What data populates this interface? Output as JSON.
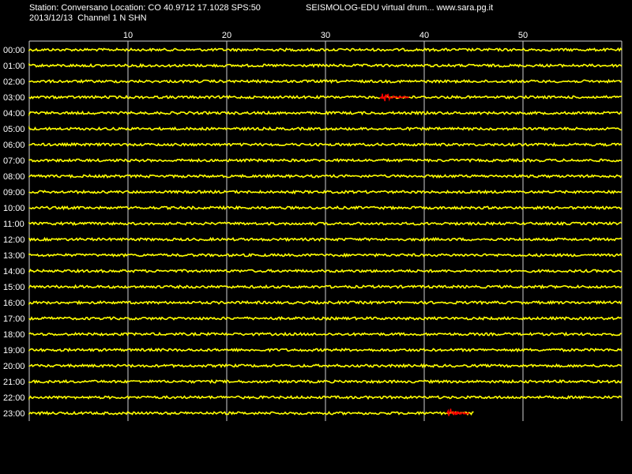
{
  "header": {
    "station_line": "Station: Conversano Location: CO 40.9712 17.1028 SPS:50",
    "site_line": "SEISMOLOG-EDU virtual drum... www.sara.pg.it",
    "date_line": "2013/12/13  Channel 1 N SHN"
  },
  "minute_axis": {
    "ticks": [
      "10",
      "20",
      "30",
      "40",
      "50"
    ],
    "tick_values": [
      10,
      20,
      30,
      40,
      50
    ],
    "range_minutes": [
      0,
      60
    ]
  },
  "hours": [
    "00:00",
    "01:00",
    "02:00",
    "03:00",
    "04:00",
    "05:00",
    "06:00",
    "07:00",
    "08:00",
    "09:00",
    "10:00",
    "11:00",
    "12:00",
    "13:00",
    "14:00",
    "15:00",
    "16:00",
    "17:00",
    "18:00",
    "19:00",
    "20:00",
    "21:00",
    "22:00",
    "23:00"
  ],
  "last_hour_end_minute": 45,
  "colors": {
    "background": "#000000",
    "trace": "#ffff00",
    "event": "#ff0000",
    "grid": "#d0d0d0",
    "text": "#ffffff"
  },
  "events": [
    {
      "hour": "03:00",
      "start_minute": 35.5,
      "end_minute": 38.5
    },
    {
      "hour": "23:00",
      "start_minute": 42.3,
      "end_minute": 44.6
    }
  ]
}
